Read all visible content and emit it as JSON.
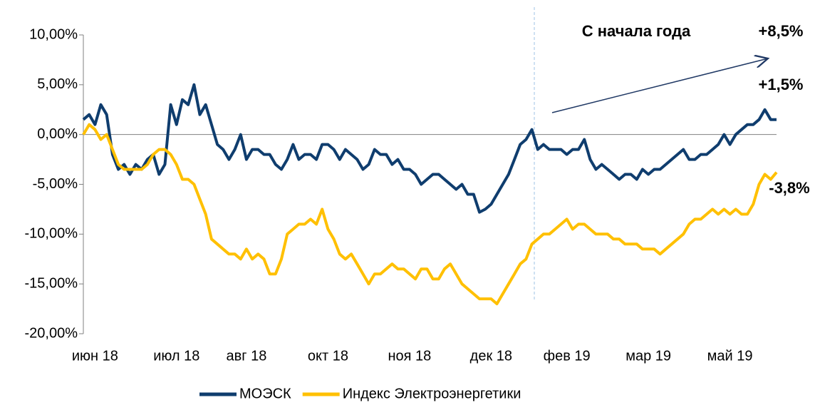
{
  "chart_data": {
    "type": "line",
    "categories": [
      null,
      null,
      "июн 18",
      null,
      null,
      null,
      null,
      null,
      null,
      null,
      null,
      null,
      null,
      null,
      null,
      null,
      "июл 18",
      null,
      null,
      null,
      null,
      null,
      null,
      null,
      null,
      null,
      null,
      null,
      "авг 18",
      null,
      null,
      null,
      null,
      null,
      null,
      null,
      null,
      null,
      null,
      null,
      null,
      null,
      "окт 18",
      null,
      null,
      null,
      null,
      null,
      null,
      null,
      null,
      null,
      null,
      null,
      null,
      null,
      "ноя 18",
      null,
      null,
      null,
      null,
      null,
      null,
      null,
      null,
      null,
      null,
      null,
      null,
      null,
      "дек 18",
      null,
      null,
      null,
      null,
      null,
      null,
      null,
      null,
      null,
      null,
      null,
      null,
      "фев 19",
      null,
      null,
      null,
      null,
      null,
      null,
      null,
      null,
      null,
      null,
      null,
      null,
      null,
      "мар 19",
      null,
      null,
      null,
      null,
      null,
      null,
      null,
      null,
      null,
      null,
      null,
      null,
      null,
      "май 19",
      null,
      null,
      null,
      null,
      null,
      null,
      null,
      null
    ],
    "series": [
      {
        "name": "МОЭСК",
        "color": "#0f3d6e",
        "values": [
          1.5,
          2,
          1,
          3,
          2,
          -2,
          -3.5,
          -3,
          -4,
          -3,
          -3.5,
          -2.5,
          -2,
          -4,
          -3,
          3,
          1,
          3.5,
          3,
          5,
          2,
          3,
          1,
          -1,
          -1.5,
          -2.5,
          -1.5,
          0,
          -2.5,
          -1.5,
          -1.5,
          -2,
          -2,
          -3,
          -3.5,
          -2.5,
          -1,
          -2.5,
          -2,
          -2,
          -2.5,
          -1,
          -1,
          -1.5,
          -2.5,
          -1.5,
          -2,
          -2.5,
          -3.5,
          -3,
          -1.5,
          -2,
          -2,
          -3,
          -2.5,
          -3.5,
          -3.5,
          -4,
          -5,
          -4.5,
          -4,
          -4,
          -4.5,
          -5,
          -5.5,
          -5,
          -6,
          -6,
          -7.8,
          -7.5,
          -7,
          -6,
          -5,
          -4,
          -2.5,
          -1,
          -0.5,
          0.5,
          -1.5,
          -1,
          -1.5,
          -1.5,
          -1.5,
          -2,
          -1.5,
          -1.5,
          -0.5,
          -2.5,
          -3.5,
          -3,
          -3.5,
          -4,
          -4.5,
          -4,
          -4,
          -4.5,
          -3.5,
          -4,
          -3.5,
          -3.5,
          -3,
          -2.5,
          -2,
          -1.5,
          -2.5,
          -2.5,
          -2,
          -2,
          -1.5,
          -1,
          0,
          -1,
          0,
          0.5,
          1,
          1,
          1.5,
          2.5,
          1.5,
          1.5
        ]
      },
      {
        "name": "Индекс Электроэнергетики",
        "color": "#ffc000",
        "values": [
          0,
          1,
          0.5,
          -0.5,
          0,
          -1.5,
          -3,
          -3.5,
          -3.5,
          -3.5,
          -3.5,
          -3,
          -2,
          -1.5,
          -1.5,
          -2,
          -3,
          -4.5,
          -4.5,
          -5,
          -6.5,
          -8,
          -10.5,
          -11,
          -11.5,
          -12,
          -12,
          -12.5,
          -11.5,
          -12.5,
          -12,
          -12.5,
          -14,
          -14,
          -12.5,
          -10,
          -9.5,
          -9,
          -9,
          -8.5,
          -9,
          -7.5,
          -9.5,
          -10.5,
          -12,
          -12.5,
          -12,
          -13,
          -14,
          -15,
          -14,
          -14,
          -13.5,
          -13,
          -13.5,
          -13.5,
          -14,
          -14.5,
          -13.5,
          -13.5,
          -14.5,
          -14.5,
          -13.5,
          -13,
          -14,
          -15,
          -15.5,
          -16,
          -16.5,
          -16.5,
          -16.5,
          -17,
          -16,
          -15,
          -14,
          -13,
          -12.5,
          -11,
          -10.5,
          -10,
          -10,
          -9.5,
          -9,
          -8.5,
          -9.5,
          -9,
          -9,
          -9.5,
          -10,
          -10,
          -10,
          -10.5,
          -10.5,
          -11,
          -11,
          -11,
          -11.5,
          -11.5,
          -11.5,
          -12,
          -11.5,
          -11,
          -10.5,
          -10,
          -9,
          -8.5,
          -8.5,
          -8,
          -7.5,
          -8,
          -7.5,
          -8,
          -7.5,
          -8,
          -8,
          -7,
          -5,
          -4,
          -4.5,
          -3.8
        ]
      }
    ],
    "ylim": [
      -20,
      10
    ],
    "yticks": [
      {
        "value": -20,
        "label": "-20,00%"
      },
      {
        "value": -15,
        "label": "-15,00%"
      },
      {
        "value": -10,
        "label": "-10,00%"
      },
      {
        "value": -5,
        "label": "-5,00%"
      },
      {
        "value": 0,
        "label": "0,00%"
      },
      {
        "value": 5,
        "label": "5,00%"
      },
      {
        "value": 10,
        "label": "10,00%"
      }
    ],
    "annotations": [
      {
        "text": "С начала года",
        "color": "#000000"
      },
      {
        "text": "+8,5%",
        "color": "#00a651"
      },
      {
        "text": "+1,5%",
        "color": "#00a651"
      },
      {
        "text": "-3,8%",
        "color": "#ff0000"
      }
    ],
    "legend": "bottom"
  }
}
